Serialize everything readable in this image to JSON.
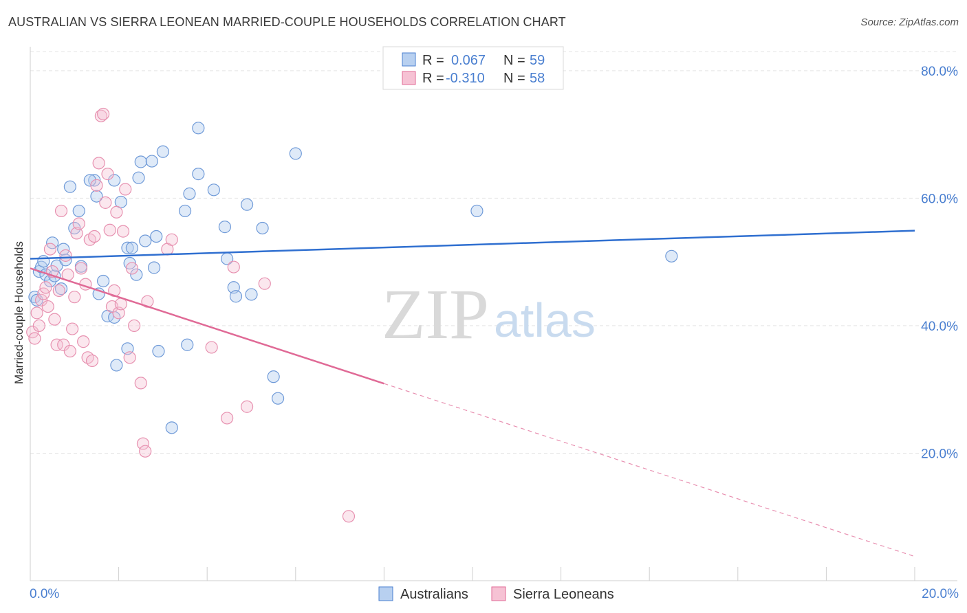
{
  "title": "AUSTRALIAN VS SIERRA LEONEAN MARRIED-COUPLE HOUSEHOLDS CORRELATION CHART",
  "source": "Source: ZipAtlas.com",
  "watermark": {
    "part1": "ZIP",
    "part2": "atlas"
  },
  "legend": {
    "rows": [
      {
        "r_label": "R =",
        "r_value": "0.067",
        "n_label": "N =",
        "n_value": "59"
      },
      {
        "r_label": "R =",
        "r_value": "-0.310",
        "n_label": "N =",
        "n_value": "58"
      }
    ]
  },
  "bottom_legend": {
    "australians": "Australians",
    "sierra_leoneans": "Sierra Leoneans"
  },
  "colors": {
    "blue": "#4a7fd0",
    "blue_fill": "#b8d0f0",
    "pink": "#e06a96",
    "pink_fill": "#f6c2d4",
    "axis_text": "#4a7fd0"
  },
  "chart_data": {
    "type": "scatter",
    "title": "AUSTRALIAN VS SIERRA LEONEAN MARRIED-COUPLE HOUSEHOLDS CORRELATION CHART",
    "xlabel": "",
    "ylabel": "Married-couple Households",
    "xlim": [
      0,
      20
    ],
    "ylim": [
      0,
      83
    ],
    "x_tick_labels": [
      "0.0%",
      "20.0%"
    ],
    "y_ticks": [
      20,
      40,
      60,
      80
    ],
    "y_tick_labels": [
      "20.0%",
      "40.0%",
      "60.0%",
      "80.0%"
    ],
    "series": [
      {
        "name": "Australians",
        "R": 0.067,
        "N": 59,
        "trend": {
          "x": [
            0.0,
            20.0
          ],
          "y": [
            50.5,
            54.9
          ],
          "dashed_from": null
        },
        "points": [
          [
            0.1,
            44.5
          ],
          [
            0.15,
            44.0
          ],
          [
            0.2,
            48.5
          ],
          [
            0.25,
            49.2
          ],
          [
            0.3,
            50.1
          ],
          [
            0.35,
            48.0
          ],
          [
            0.45,
            47.0
          ],
          [
            0.55,
            47.8
          ],
          [
            0.6,
            49.4
          ],
          [
            0.5,
            53.0
          ],
          [
            0.75,
            52.0
          ],
          [
            0.8,
            50.3
          ],
          [
            0.7,
            45.8
          ],
          [
            1.0,
            55.3
          ],
          [
            1.15,
            49.3
          ],
          [
            0.9,
            61.8
          ],
          [
            1.45,
            62.8
          ],
          [
            1.1,
            58.0
          ],
          [
            1.35,
            62.8
          ],
          [
            1.9,
            62.8
          ],
          [
            1.5,
            60.3
          ],
          [
            1.55,
            45.0
          ],
          [
            1.65,
            47.0
          ],
          [
            1.75,
            41.5
          ],
          [
            1.9,
            41.3
          ],
          [
            2.05,
            59.4
          ],
          [
            2.2,
            52.2
          ],
          [
            2.25,
            49.8
          ],
          [
            2.3,
            52.2
          ],
          [
            2.4,
            48.0
          ],
          [
            2.5,
            65.7
          ],
          [
            2.75,
            65.8
          ],
          [
            2.45,
            63.2
          ],
          [
            2.6,
            53.3
          ],
          [
            2.8,
            49.1
          ],
          [
            2.85,
            54.0
          ],
          [
            3.0,
            67.3
          ],
          [
            2.2,
            36.4
          ],
          [
            2.9,
            36.0
          ],
          [
            1.95,
            33.8
          ],
          [
            3.2,
            24.0
          ],
          [
            3.5,
            58.0
          ],
          [
            3.6,
            60.7
          ],
          [
            3.8,
            63.8
          ],
          [
            3.8,
            71.0
          ],
          [
            4.15,
            61.3
          ],
          [
            4.45,
            50.5
          ],
          [
            4.4,
            55.5
          ],
          [
            4.6,
            46.0
          ],
          [
            4.65,
            44.6
          ],
          [
            4.9,
            59.0
          ],
          [
            5.0,
            44.9
          ],
          [
            5.25,
            55.3
          ],
          [
            5.5,
            32.0
          ],
          [
            5.6,
            28.6
          ],
          [
            3.55,
            37.0
          ],
          [
            6.0,
            67.0
          ],
          [
            10.1,
            58.0
          ],
          [
            14.5,
            50.9
          ]
        ]
      },
      {
        "name": "Sierra Leoneans",
        "R": -0.31,
        "N": 58,
        "trend": {
          "x": [
            0.0,
            20.0
          ],
          "y": [
            49.0,
            3.8
          ],
          "dashed_from": 8.0
        },
        "points": [
          [
            0.05,
            39.0
          ],
          [
            0.1,
            38.0
          ],
          [
            0.15,
            42.0
          ],
          [
            0.2,
            40.0
          ],
          [
            0.25,
            44.0
          ],
          [
            0.3,
            45.0
          ],
          [
            0.35,
            46.0
          ],
          [
            0.4,
            43.0
          ],
          [
            0.45,
            52.0
          ],
          [
            0.5,
            48.5
          ],
          [
            0.55,
            41.0
          ],
          [
            0.6,
            37.0
          ],
          [
            0.65,
            45.5
          ],
          [
            0.7,
            58.0
          ],
          [
            0.75,
            37.0
          ],
          [
            0.8,
            51.0
          ],
          [
            0.85,
            48.0
          ],
          [
            0.9,
            36.0
          ],
          [
            0.95,
            39.5
          ],
          [
            1.0,
            44.5
          ],
          [
            1.05,
            54.5
          ],
          [
            1.1,
            56.0
          ],
          [
            1.15,
            49.0
          ],
          [
            1.2,
            37.5
          ],
          [
            1.25,
            46.5
          ],
          [
            1.3,
            35.0
          ],
          [
            1.35,
            53.5
          ],
          [
            1.4,
            34.5
          ],
          [
            1.45,
            54.0
          ],
          [
            1.5,
            62.0
          ],
          [
            1.55,
            65.5
          ],
          [
            1.6,
            72.9
          ],
          [
            1.65,
            73.2
          ],
          [
            1.7,
            59.3
          ],
          [
            1.75,
            63.8
          ],
          [
            1.8,
            55.0
          ],
          [
            1.85,
            43.0
          ],
          [
            1.9,
            45.5
          ],
          [
            1.95,
            57.8
          ],
          [
            2.0,
            42.0
          ],
          [
            2.05,
            43.4
          ],
          [
            2.1,
            54.8
          ],
          [
            2.15,
            61.4
          ],
          [
            2.25,
            35.0
          ],
          [
            2.3,
            49.0
          ],
          [
            2.35,
            40.0
          ],
          [
            2.5,
            31.0
          ],
          [
            2.55,
            21.5
          ],
          [
            2.6,
            20.3
          ],
          [
            2.65,
            43.8
          ],
          [
            3.1,
            52.0
          ],
          [
            3.2,
            53.5
          ],
          [
            4.1,
            36.6
          ],
          [
            4.45,
            25.5
          ],
          [
            4.6,
            49.2
          ],
          [
            4.9,
            27.3
          ],
          [
            5.3,
            46.6
          ],
          [
            7.2,
            10.1
          ]
        ]
      }
    ]
  }
}
